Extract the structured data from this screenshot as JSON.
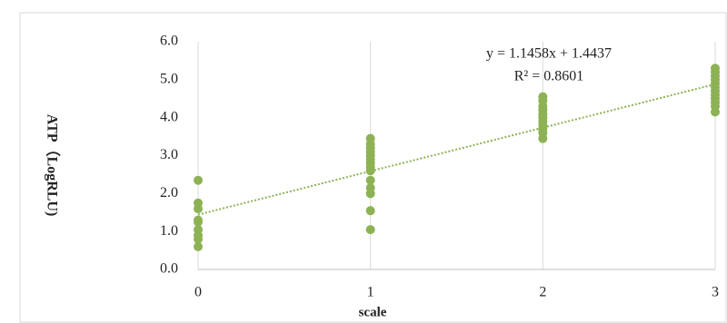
{
  "chart_data": {
    "type": "scatter",
    "x_label": "scale",
    "y_label": "ATP（LogRLU)",
    "series": [
      {
        "name": "ATP",
        "color": "#8db255",
        "x": [
          0,
          0,
          0,
          0,
          0,
          0,
          0,
          0,
          0,
          1,
          1,
          1,
          1,
          1,
          1,
          1,
          1,
          1,
          1,
          1,
          1,
          1,
          1,
          2,
          2,
          2,
          2,
          2,
          2,
          2,
          2,
          2,
          2,
          2,
          3,
          3,
          3,
          3,
          3,
          3,
          3,
          3,
          3,
          3,
          3,
          3
        ],
        "values": [
          2.35,
          1.75,
          1.6,
          1.3,
          1.25,
          1.05,
          0.9,
          0.8,
          0.6,
          3.45,
          3.3,
          3.2,
          3.1,
          3.0,
          2.9,
          2.8,
          2.7,
          2.6,
          2.35,
          2.15,
          2.0,
          1.55,
          1.05,
          4.55,
          4.45,
          4.3,
          4.2,
          4.1,
          4.0,
          3.9,
          3.8,
          3.7,
          3.6,
          3.45,
          5.3,
          5.2,
          5.1,
          5.0,
          4.9,
          4.8,
          4.7,
          4.6,
          4.5,
          4.4,
          4.3,
          4.15
        ]
      }
    ],
    "trendline": {
      "slope": 1.1458,
      "intercept": 1.4437,
      "color": "#8db255"
    },
    "annotations": [
      "y = 1.1458x + 1.4437",
      "R² = 0.8601"
    ],
    "xlim": [
      0,
      3
    ],
    "xticks": [
      0,
      1,
      2,
      3
    ],
    "ylim": [
      0,
      6
    ],
    "yticks": [
      {
        "value": 0,
        "label": "0.0"
      },
      {
        "value": 1,
        "label": "1.0"
      },
      {
        "value": 2,
        "label": "2.0"
      },
      {
        "value": 3,
        "label": "3.0"
      },
      {
        "value": 4,
        "label": "4.0"
      },
      {
        "value": 5,
        "label": "5.0"
      },
      {
        "value": 6,
        "label": "6.0"
      }
    ],
    "grid": "x"
  }
}
